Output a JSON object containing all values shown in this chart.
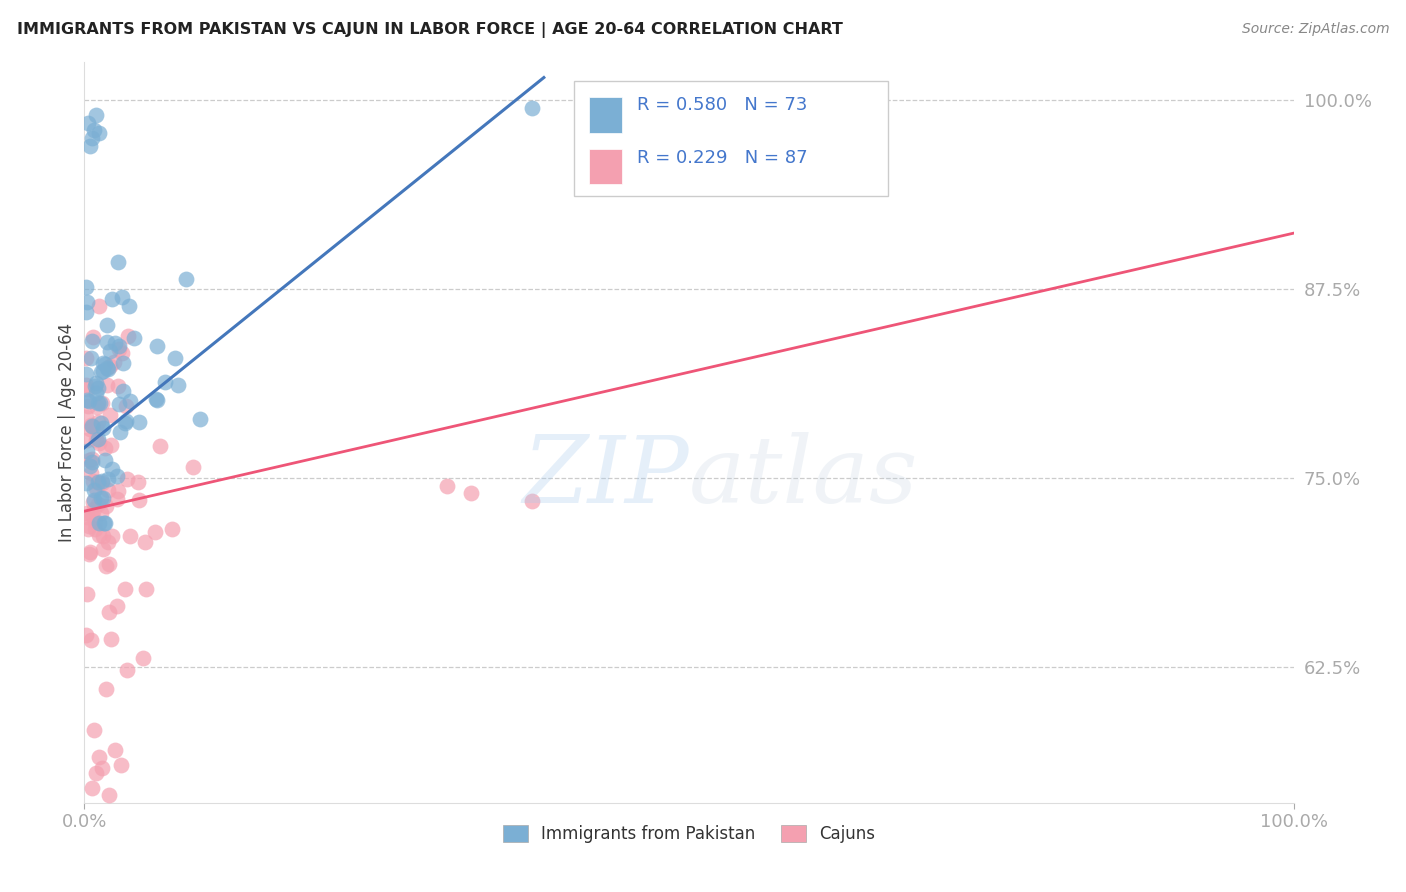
{
  "title": "IMMIGRANTS FROM PAKISTAN VS CAJUN IN LABOR FORCE | AGE 20-64 CORRELATION CHART",
  "source": "Source: ZipAtlas.com",
  "ylabel": "In Labor Force | Age 20-64",
  "r_pakistan": 0.58,
  "n_pakistan": 73,
  "r_cajun": 0.229,
  "n_cajun": 87,
  "blue_color": "#7BAFD4",
  "pink_color": "#F4A0B0",
  "blue_line_color": "#4477BB",
  "pink_line_color": "#EE5577",
  "legend_blue_label": "Immigrants from Pakistan",
  "legend_pink_label": "Cajuns",
  "ytick_labels": [
    "62.5%",
    "75.0%",
    "87.5%",
    "100.0%"
  ],
  "ytick_values": [
    0.625,
    0.75,
    0.875,
    1.0
  ],
  "xtick_labels": [
    "0.0%",
    "100.0%"
  ],
  "xtick_values": [
    0.0,
    1.0
  ],
  "xmin": 0.0,
  "xmax": 1.0,
  "ymin": 0.535,
  "ymax": 1.025,
  "watermark_zip": "ZIP",
  "watermark_atlas": "atlas",
  "background_color": "#FFFFFF",
  "grid_color": "#CCCCCC",
  "tick_label_color": "#4477CC",
  "title_color": "#222222",
  "blue_line_x0": 0.0,
  "blue_line_y0": 0.77,
  "blue_line_x1": 0.38,
  "blue_line_y1": 1.015,
  "pink_line_x0": 0.0,
  "pink_line_y0": 0.728,
  "pink_line_x1": 1.0,
  "pink_line_y1": 0.912
}
